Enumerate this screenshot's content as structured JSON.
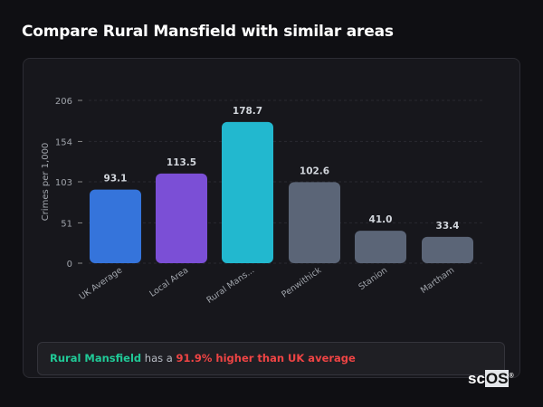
{
  "header": {
    "title": "Compare Rural Mansfield with similar areas"
  },
  "chart_data": {
    "type": "bar",
    "title": "",
    "xlabel": "",
    "ylabel": "Crimes per 1,000",
    "ylim": [
      0,
      206
    ],
    "yticks": [
      0,
      51,
      103,
      154,
      206
    ],
    "grid": true,
    "categories": [
      "UK Average",
      "Local Area",
      "Rural Mans...",
      "Penwithick",
      "Stanion",
      "Martham"
    ],
    "values": [
      93.1,
      113.5,
      178.7,
      102.6,
      41.0,
      33.4
    ],
    "data_labels": [
      "93.1",
      "113.5",
      "178.7",
      "102.6",
      "41.0",
      "33.4"
    ],
    "colors": [
      "#3574db",
      "#7b4fd6",
      "#22b8cf",
      "#5b6577",
      "#5b6577",
      "#5b6577"
    ]
  },
  "insight": {
    "area": "Rural Mansfield",
    "middle": " has a ",
    "comparison": "91.9% higher than UK average"
  },
  "logo": {
    "text_a": "sc",
    "text_b": "OS",
    "mark": "®"
  }
}
